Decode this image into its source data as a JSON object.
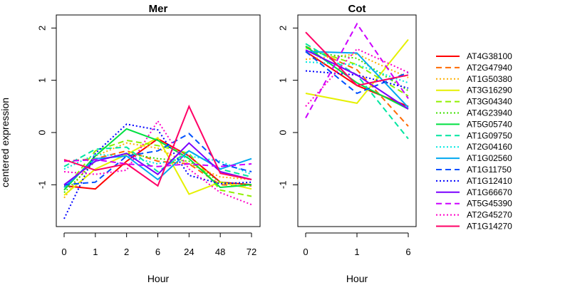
{
  "chart_data": {
    "type": "line",
    "ylabel": "centered expression",
    "legend_position": "right",
    "series_styles": [
      {
        "name": "AT4G38100",
        "color": "#FF0000",
        "dash": "solid"
      },
      {
        "name": "AT2G47940",
        "color": "#FF6A00",
        "dash": "dashed"
      },
      {
        "name": "AT1G50380",
        "color": "#FFB000",
        "dash": "dotted"
      },
      {
        "name": "AT3G16290",
        "color": "#E5F000",
        "dash": "solid"
      },
      {
        "name": "AT3G04340",
        "color": "#90F000",
        "dash": "dashed"
      },
      {
        "name": "AT4G23940",
        "color": "#3FE000",
        "dash": "dotted"
      },
      {
        "name": "AT5G05740",
        "color": "#00E040",
        "dash": "solid"
      },
      {
        "name": "AT1G09750",
        "color": "#00E6A0",
        "dash": "dashed"
      },
      {
        "name": "AT2G04160",
        "color": "#00E8E0",
        "dash": "dotted"
      },
      {
        "name": "AT1G02560",
        "color": "#00A8F0",
        "dash": "solid"
      },
      {
        "name": "AT1G11750",
        "color": "#0050FF",
        "dash": "dashed"
      },
      {
        "name": "AT1G12410",
        "color": "#0000FF",
        "dash": "dotted"
      },
      {
        "name": "AT1G66670",
        "color": "#7A00FF",
        "dash": "solid"
      },
      {
        "name": "AT5G45390",
        "color": "#CC00FF",
        "dash": "dashed"
      },
      {
        "name": "AT2G45270",
        "color": "#FF00C8",
        "dash": "dotted"
      },
      {
        "name": "AT1G14270",
        "color": "#FF0066",
        "dash": "solid"
      }
    ],
    "panels": [
      {
        "title": "Mer",
        "xlabel": "Hour",
        "categories": [
          "0",
          "1",
          "2",
          "6",
          "24",
          "48",
          "72"
        ],
        "ylim": [
          -1.8,
          2.25
        ],
        "yticks": [
          -1,
          0,
          1,
          2
        ],
        "series": [
          {
            "name": "AT4G38100",
            "values": [
              -1.02,
              -1.08,
              -0.55,
              -0.12,
              -0.45,
              -0.95,
              -1.0
            ]
          },
          {
            "name": "AT2G47940",
            "values": [
              -0.55,
              -0.5,
              -0.35,
              -0.55,
              -0.6,
              -1.0,
              -1.02
            ]
          },
          {
            "name": "AT1G50380",
            "values": [
              -1.25,
              -0.45,
              -0.2,
              -0.3,
              -0.6,
              -0.85,
              -0.9
            ]
          },
          {
            "name": "AT3G16290",
            "values": [
              -1.2,
              -0.7,
              -0.42,
              -0.1,
              -1.18,
              -0.95,
              -1.08
            ]
          },
          {
            "name": "AT3G04340",
            "values": [
              -1.1,
              -0.35,
              -0.15,
              -0.25,
              -0.4,
              -1.1,
              -1.22
            ]
          },
          {
            "name": "AT4G23940",
            "values": [
              -1.15,
              -0.55,
              -0.4,
              -0.5,
              -0.55,
              -0.95,
              -1.0
            ]
          },
          {
            "name": "AT5G05740",
            "values": [
              -1.1,
              -0.45,
              0.07,
              -0.15,
              -0.5,
              -1.05,
              -1.0
            ]
          },
          {
            "name": "AT1G09750",
            "values": [
              -0.65,
              -0.32,
              -0.28,
              -0.75,
              -0.35,
              -0.7,
              -0.85
            ]
          },
          {
            "name": "AT2G04160",
            "values": [
              -0.7,
              -0.42,
              -0.45,
              -0.6,
              -0.45,
              -0.55,
              -0.8
            ]
          },
          {
            "name": "AT1G02560",
            "values": [
              -1.05,
              -0.5,
              -0.45,
              -0.9,
              -0.35,
              -0.7,
              -0.5
            ]
          },
          {
            "name": "AT1G11750",
            "values": [
              -1.0,
              -0.95,
              -0.45,
              -0.35,
              -0.02,
              -0.6,
              -0.75
            ]
          },
          {
            "name": "AT1G12410",
            "values": [
              -1.65,
              -0.4,
              0.16,
              0.05,
              -0.82,
              -0.98,
              -0.95
            ]
          },
          {
            "name": "AT1G66670",
            "values": [
              -1.0,
              -0.55,
              -0.4,
              -0.8,
              -0.2,
              -0.75,
              -0.9
            ]
          },
          {
            "name": "AT5G45390",
            "values": [
              -0.55,
              -0.52,
              -0.6,
              -0.65,
              -0.6,
              -0.65,
              -0.6
            ]
          },
          {
            "name": "AT2G45270",
            "values": [
              -0.75,
              -0.8,
              -0.72,
              0.22,
              -0.7,
              -1.15,
              -1.38
            ]
          },
          {
            "name": "AT1G14270",
            "values": [
              -0.52,
              -0.72,
              -0.6,
              -1.02,
              0.5,
              -0.78,
              -0.9
            ]
          }
        ]
      },
      {
        "title": "Cot",
        "xlabel": "Hour",
        "categories": [
          "0",
          "1",
          "6"
        ],
        "ylim": [
          -1.8,
          2.25
        ],
        "yticks": [
          -1,
          0,
          1,
          2
        ],
        "series": [
          {
            "name": "AT4G38100",
            "values": [
              1.55,
              0.9,
              0.5
            ]
          },
          {
            "name": "AT2G47940",
            "values": [
              1.65,
              1.2,
              0.12
            ]
          },
          {
            "name": "AT1G50380",
            "values": [
              1.4,
              1.5,
              1.05
            ]
          },
          {
            "name": "AT3G16290",
            "values": [
              0.75,
              0.56,
              1.78
            ]
          },
          {
            "name": "AT3G04340",
            "values": [
              1.62,
              1.3,
              0.7
            ]
          },
          {
            "name": "AT4G23940",
            "values": [
              1.55,
              1.42,
              0.8
            ]
          },
          {
            "name": "AT5G05740",
            "values": [
              1.65,
              0.95,
              0.45
            ]
          },
          {
            "name": "AT1G09750",
            "values": [
              1.7,
              1.1,
              -0.12
            ]
          },
          {
            "name": "AT2G04160",
            "values": [
              1.35,
              1.3,
              0.95
            ]
          },
          {
            "name": "AT1G02560",
            "values": [
              1.55,
              1.52,
              0.48
            ]
          },
          {
            "name": "AT1G11750",
            "values": [
              1.55,
              0.75,
              1.15
            ]
          },
          {
            "name": "AT1G12410",
            "values": [
              1.18,
              1.1,
              0.85
            ]
          },
          {
            "name": "AT1G66670",
            "values": [
              1.58,
              1.1,
              0.45
            ]
          },
          {
            "name": "AT5G45390",
            "values": [
              0.28,
              2.08,
              0.65
            ]
          },
          {
            "name": "AT2G45270",
            "values": [
              0.5,
              1.6,
              1.15
            ]
          },
          {
            "name": "AT1G14270",
            "values": [
              1.92,
              0.9,
              1.1
            ]
          }
        ]
      }
    ]
  }
}
